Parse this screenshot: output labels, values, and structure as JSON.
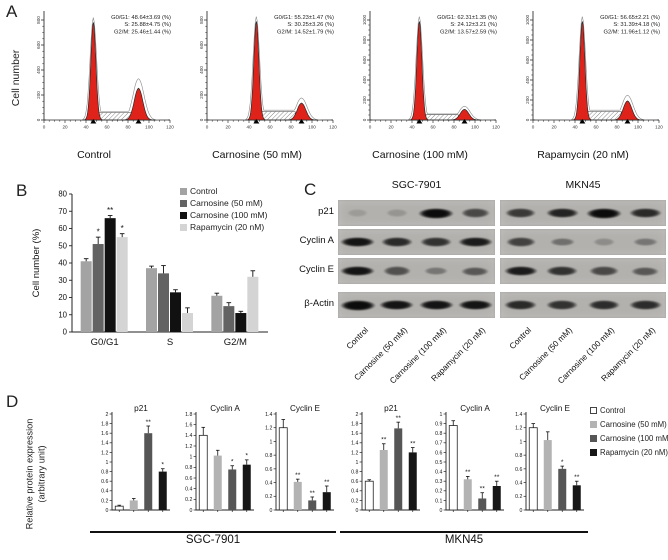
{
  "panels": {
    "a": "A",
    "b": "B",
    "c": "C",
    "d": "D"
  },
  "treatments": [
    "Control",
    "Carnosine (50 mM)",
    "Carnosine (100 mM)",
    "Rapamycin (20 nM)"
  ],
  "colors": {
    "flow_fill": "#e0231a",
    "flow_outline": "#2a2a2a",
    "flow_model_line": "#8a8a8a",
    "axis": "#333333",
    "b_series": [
      "#a3a3a3",
      "#636363",
      "#111111",
      "#d4d4d4"
    ],
    "d_series": [
      "#ffffff",
      "#b3b3b3",
      "#565656",
      "#161616"
    ],
    "blot_bg": "#b3b1ae",
    "band": "#141414"
  },
  "panelA": {
    "ylabel": "Cell number"
  },
  "panelC": {
    "cell_line_titles": [
      "SGC-7901",
      "MKN45"
    ],
    "row_labels": [
      "p21",
      "Cyclin A",
      "Cyclin E",
      "β-Actin"
    ],
    "lane_labels": [
      "Control",
      "Carnosine (50 mM)",
      "Carnosine (100 mM)",
      "Rapamycin (20 nM)"
    ],
    "band_intensities": [
      {
        "cell_line": "SGC-7901",
        "rows": [
          [
            0.05,
            0.1,
            1.0,
            0.6
          ],
          [
            0.95,
            0.8,
            0.75,
            0.9
          ],
          [
            0.95,
            0.55,
            0.3,
            0.5
          ],
          [
            1.0,
            0.95,
            0.95,
            0.95
          ]
        ]
      },
      {
        "cell_line": "MKN45",
        "rows": [
          [
            0.7,
            0.85,
            1.0,
            0.8
          ],
          [
            0.65,
            0.35,
            0.15,
            0.3
          ],
          [
            0.9,
            0.75,
            0.6,
            0.5
          ],
          [
            0.8,
            0.75,
            0.78,
            0.78
          ]
        ]
      }
    ]
  },
  "panelD": {
    "ylabel_line1": "Relative protein expression",
    "ylabel_line2": "(arbitrary unit)",
    "group_labels": [
      "SGC-7901",
      "MKN45"
    ]
  },
  "chart_data": [
    {
      "id": "flow-control",
      "type": "histogram",
      "title": "Control",
      "ylabel": "Cell number",
      "annotation": [
        "G0/G1: 48.64±3.69 (%)",
        "S: 25.88±4.75 (%)",
        "G2/M: 25.46±1.44 (%)"
      ],
      "values": {
        "g0g1": [
          48.64,
          3.69
        ],
        "s": [
          25.88,
          4.75
        ],
        "g2m": [
          25.46,
          1.44
        ]
      },
      "yticks": [
        0,
        200,
        400,
        600,
        800
      ],
      "xticks": [
        0,
        20,
        40,
        60,
        80,
        100,
        120
      ],
      "g1_peak": {
        "x": 47,
        "h": 0.92
      },
      "g2_peak": {
        "x": 90,
        "h": 0.3
      },
      "s_phase_h": 0.07
    },
    {
      "id": "flow-carnosine-50",
      "type": "histogram",
      "title": "Carnosine (50 mM)",
      "ylabel": "Cell number",
      "annotation": [
        "G0/G1: 55.23±1.47 (%)",
        "S: 30.25±3.26 (%)",
        "G2/M: 14.52±1.79 (%)"
      ],
      "values": {
        "g0g1": [
          55.23,
          1.47
        ],
        "s": [
          30.25,
          3.26
        ],
        "g2m": [
          14.52,
          1.79
        ]
      },
      "yticks": [
        0,
        200,
        400,
        600,
        800
      ],
      "xticks": [
        0,
        20,
        40,
        60,
        80,
        100,
        120
      ],
      "g1_peak": {
        "x": 47,
        "h": 0.93
      },
      "g2_peak": {
        "x": 90,
        "h": 0.16
      },
      "s_phase_h": 0.08
    },
    {
      "id": "flow-carnosine-100",
      "type": "histogram",
      "title": "Carnosine (100 mM)",
      "ylabel": "Cell number",
      "annotation": [
        "G0/G1: 62.31±1.35 (%)",
        "S: 24.12±3.21 (%)",
        "G2/M: 13.57±2.59 (%)"
      ],
      "values": {
        "g0g1": [
          62.31,
          1.35
        ],
        "s": [
          24.12,
          3.21
        ],
        "g2m": [
          13.57,
          2.59
        ]
      },
      "yticks": [
        0,
        200,
        400,
        600,
        800,
        1000
      ],
      "xticks": [
        0,
        20,
        40,
        60,
        80,
        100,
        120
      ],
      "g1_peak": {
        "x": 47,
        "h": 0.93
      },
      "g2_peak": {
        "x": 90,
        "h": 0.1
      },
      "s_phase_h": 0.05
    },
    {
      "id": "flow-rapamycin",
      "type": "histogram",
      "title": "Rapamycin (20 nM)",
      "ylabel": "Cell number",
      "annotation": [
        "G0/G1: 56.65±2.21 (%)",
        "S: 31.39±4.18 (%)",
        "G2/M: 11.96±1.12 (%)"
      ],
      "values": {
        "g0g1": [
          56.65,
          2.21
        ],
        "s": [
          31.39,
          4.18
        ],
        "g2m": [
          11.96,
          1.12
        ]
      },
      "yticks": [
        0,
        200,
        400,
        600,
        800,
        1000
      ],
      "xticks": [
        0,
        20,
        40,
        60,
        80,
        100,
        120
      ],
      "g1_peak": {
        "x": 47,
        "h": 0.93
      },
      "g2_peak": {
        "x": 90,
        "h": 0.18
      },
      "s_phase_h": 0.08
    },
    {
      "id": "cell-cycle-distribution",
      "type": "bar",
      "panel": "B",
      "ylabel": "Cell number (%)",
      "ylim": [
        0,
        80
      ],
      "ytick_step": 10,
      "categories": [
        "G0/G1",
        "S",
        "G2/M"
      ],
      "series": [
        {
          "name": "Control",
          "values": [
            41,
            37,
            21
          ],
          "errors": [
            1.5,
            1.2,
            1.5
          ],
          "sig": [
            "",
            "",
            ""
          ]
        },
        {
          "name": "Carnosine (50 mM)",
          "values": [
            51,
            34,
            15
          ],
          "errors": [
            4,
            4.5,
            2
          ],
          "sig": [
            "*",
            "",
            ""
          ]
        },
        {
          "name": "Carnosine (100 mM)",
          "values": [
            66,
            23,
            11
          ],
          "errors": [
            1.5,
            1.5,
            1
          ],
          "sig": [
            "**",
            "",
            ""
          ]
        },
        {
          "name": "Rapamycin (20 nM)",
          "values": [
            55,
            11,
            32
          ],
          "errors": [
            2,
            3,
            3.5
          ],
          "sig": [
            "*",
            "",
            ""
          ]
        }
      ]
    },
    {
      "id": "d-sgc-p21",
      "type": "bar",
      "panel": "D",
      "group": "SGC-7901",
      "title": "p21",
      "ylim": [
        0,
        2
      ],
      "ytick_step": 0.2,
      "categories": [
        "Control",
        "Carnosine (50 mM)",
        "Carnosine (100 mM)",
        "Rapamycin (20 nM)"
      ],
      "values": [
        0.08,
        0.2,
        1.6,
        0.8
      ],
      "errors": [
        0.02,
        0.04,
        0.15,
        0.06
      ],
      "sig": [
        "",
        "",
        "**",
        "*"
      ]
    },
    {
      "id": "d-sgc-cyclin-a",
      "type": "bar",
      "panel": "D",
      "group": "SGC-7901",
      "title": "Cyclin A",
      "ylim": [
        0,
        1.8
      ],
      "ytick_step": 0.2,
      "categories": [
        "Control",
        "Carnosine (50 mM)",
        "Carnosine (100 mM)",
        "Rapamycin (20 nM)"
      ],
      "values": [
        1.4,
        1.02,
        0.76,
        0.85
      ],
      "errors": [
        0.15,
        0.1,
        0.07,
        0.09
      ],
      "sig": [
        "",
        "",
        "*",
        "*"
      ]
    },
    {
      "id": "d-sgc-cyclin-e",
      "type": "bar",
      "panel": "D",
      "group": "SGC-7901",
      "title": "Cyclin E",
      "ylim": [
        0,
        1.4
      ],
      "ytick_step": 0.2,
      "categories": [
        "Control",
        "Carnosine (50 mM)",
        "Carnosine (100 mM)",
        "Rapamycin (20 nM)"
      ],
      "values": [
        1.2,
        0.41,
        0.14,
        0.26
      ],
      "errors": [
        0.12,
        0.04,
        0.05,
        0.09
      ],
      "sig": [
        "",
        "**",
        "**",
        "**"
      ]
    },
    {
      "id": "d-mkn-p21",
      "type": "bar",
      "panel": "D",
      "group": "MKN45",
      "title": "p21",
      "ylim": [
        0,
        2
      ],
      "ytick_step": 0.2,
      "categories": [
        "Control",
        "Carnosine (50 mM)",
        "Carnosine (100 mM)",
        "Rapamycin (20 nM)"
      ],
      "values": [
        0.6,
        1.25,
        1.7,
        1.2
      ],
      "errors": [
        0.03,
        0.13,
        0.13,
        0.1
      ],
      "sig": [
        "",
        "**",
        "**",
        "**"
      ]
    },
    {
      "id": "d-mkn-cyclin-a",
      "type": "bar",
      "panel": "D",
      "group": "MKN45",
      "title": "Cyclin A",
      "ylim": [
        0,
        1
      ],
      "ytick_step": 0.1,
      "categories": [
        "Control",
        "Carnosine (50 mM)",
        "Carnosine (100 mM)",
        "Rapamycin (20 nM)"
      ],
      "values": [
        0.88,
        0.32,
        0.12,
        0.25
      ],
      "errors": [
        0.05,
        0.03,
        0.06,
        0.05
      ],
      "sig": [
        "",
        "**",
        "**",
        "**"
      ]
    },
    {
      "id": "d-mkn-cyclin-e",
      "type": "bar",
      "panel": "D",
      "group": "MKN45",
      "title": "Cyclin E",
      "ylim": [
        0,
        1.4
      ],
      "ytick_step": 0.2,
      "categories": [
        "Control",
        "Carnosine (50 mM)",
        "Carnosine (100 mM)",
        "Rapamycin (20 nM)"
      ],
      "values": [
        1.2,
        1.02,
        0.6,
        0.36
      ],
      "errors": [
        0.06,
        0.12,
        0.04,
        0.06
      ],
      "sig": [
        "",
        "",
        "*",
        "**"
      ]
    }
  ]
}
